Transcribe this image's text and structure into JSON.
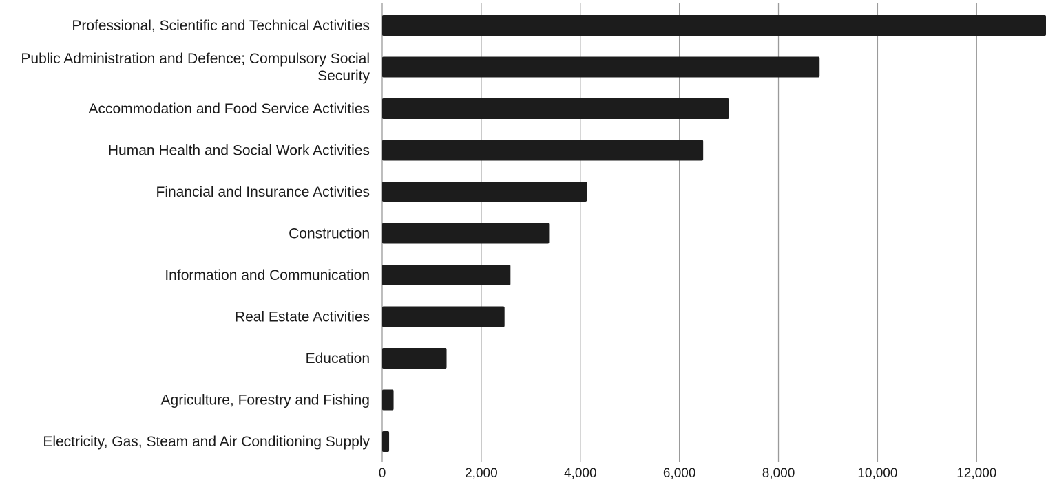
{
  "chart_data": {
    "type": "bar",
    "orientation": "horizontal",
    "title": "",
    "xlabel": "",
    "ylabel": "",
    "xlim": [
      0,
      13400
    ],
    "grid": true,
    "legend": "none",
    "x_ticks": [
      {
        "value": 0,
        "label": "0"
      },
      {
        "value": 2000,
        "label": "2,000"
      },
      {
        "value": 4000,
        "label": "4,000"
      },
      {
        "value": 6000,
        "label": "6,000"
      },
      {
        "value": 8000,
        "label": "8,000"
      },
      {
        "value": 10000,
        "label": "10,000"
      },
      {
        "value": 12000,
        "label": "12,000"
      }
    ],
    "categories": [
      [
        "Professional, Scientific and Technical Activities"
      ],
      [
        "Public Administration and Defence; Compulsory Social",
        "Security"
      ],
      [
        "Accommodation and Food Service Activities"
      ],
      [
        "Human Health and Social Work Activities"
      ],
      [
        "Financial and Insurance Activities"
      ],
      [
        "Construction"
      ],
      [
        "Information and Communication"
      ],
      [
        "Real Estate Activities"
      ],
      [
        "Education"
      ],
      [
        "Agriculture, Forestry and Fishing"
      ],
      [
        "Electricity, Gas, Steam and Air Conditioning Supply"
      ]
    ],
    "values": [
      13400,
      8830,
      7000,
      6480,
      4130,
      3370,
      2590,
      2470,
      1300,
      230,
      140
    ],
    "bar_color": "#1c1c1c",
    "grid_color": "#9a9a9a"
  }
}
